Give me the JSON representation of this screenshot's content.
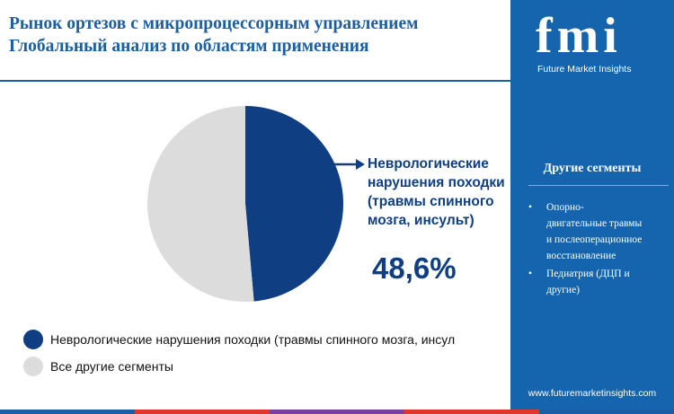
{
  "header": {
    "title_line1": "Рынок ортезов с микропроцессорным управлением",
    "title_line2": "Глобальный анализ по областям применения"
  },
  "chart_data": {
    "type": "pie",
    "title": "Рынок ортезов с микропроцессорным управлением Глобальный анализ по областям применения",
    "categories": [
      "Неврологические нарушения походки (травмы спинного мозга, инсул",
      "Все другие сегменты"
    ],
    "values": [
      48.6,
      51.4
    ],
    "colors": [
      "#0f3f82",
      "#dcdcdc"
    ],
    "highlight": {
      "label_lines": [
        "Неврологические",
        "нарушения походки",
        "(травмы спинного",
        "мозга, инсульт)"
      ],
      "value_label": "48,6%"
    },
    "legend": [
      "Неврологические нарушения походки (травмы спинного мозга, инсул",
      "Все другие сегменты"
    ]
  },
  "sidebar": {
    "brand": "fmi",
    "brand_sub": "Future Market Insights",
    "heading": "Другие сегменты",
    "bullet": "•",
    "items": [
      {
        "lines": [
          "Опорно-",
          "двигательные травмы",
          "и послеоперационное",
          "восстановление"
        ]
      },
      {
        "lines": [
          "Педиатрия (ДЦП и",
          "другие)"
        ]
      }
    ],
    "website": "www.futuremarketinsights.com"
  },
  "colors": {
    "brand_blue": "#1565ae",
    "title_blue": "#1a5fa6",
    "dark_navy": "#0f3f82",
    "gray_slice": "#dcdcdc",
    "strip": [
      "#1a5fa6",
      "#e0362c",
      "#7b3fa0",
      "#e0362c",
      "#1a5fa6"
    ]
  }
}
